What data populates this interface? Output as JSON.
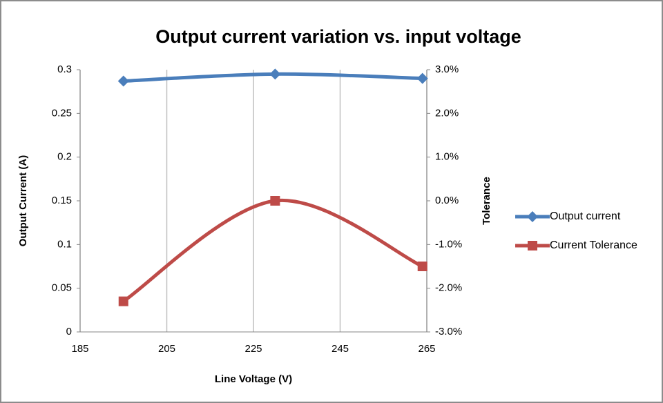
{
  "chart_data": {
    "type": "line",
    "title": "Output current variation vs. input voltage",
    "xlabel": "Line Voltage (V)",
    "ylabel": "Output Current (A)",
    "y2label": "Tolerance",
    "x": [
      195,
      230,
      264
    ],
    "series": [
      {
        "name": "Output current",
        "color": "#4a7ebb",
        "marker": "diamond",
        "values": [
          0.287,
          0.295,
          0.29
        ]
      },
      {
        "name": "Current Tolerance",
        "color": "#be4b48",
        "marker": "square",
        "axis": "y2",
        "values": [
          -2.3,
          0.0,
          -1.5
        ]
      }
    ],
    "xlim": [
      185,
      265
    ],
    "xticks": [
      185,
      205,
      225,
      245,
      265
    ],
    "ylim": [
      0,
      0.3
    ],
    "yticks": [
      0,
      0.05,
      0.1,
      0.15,
      0.2,
      0.25,
      0.3
    ],
    "y2lim": [
      -3,
      3
    ],
    "y2ticks": [
      {
        "value": -3,
        "label": "-3.0%"
      },
      {
        "value": -2,
        "label": "-2.0%"
      },
      {
        "value": -1,
        "label": "-1.0%"
      },
      {
        "value": 0,
        "label": "0.0%"
      },
      {
        "value": 1,
        "label": "1.0%"
      },
      {
        "value": 2,
        "label": "2.0%"
      },
      {
        "value": 3,
        "label": "3.0%"
      }
    ],
    "grid": true,
    "legend": "right"
  }
}
